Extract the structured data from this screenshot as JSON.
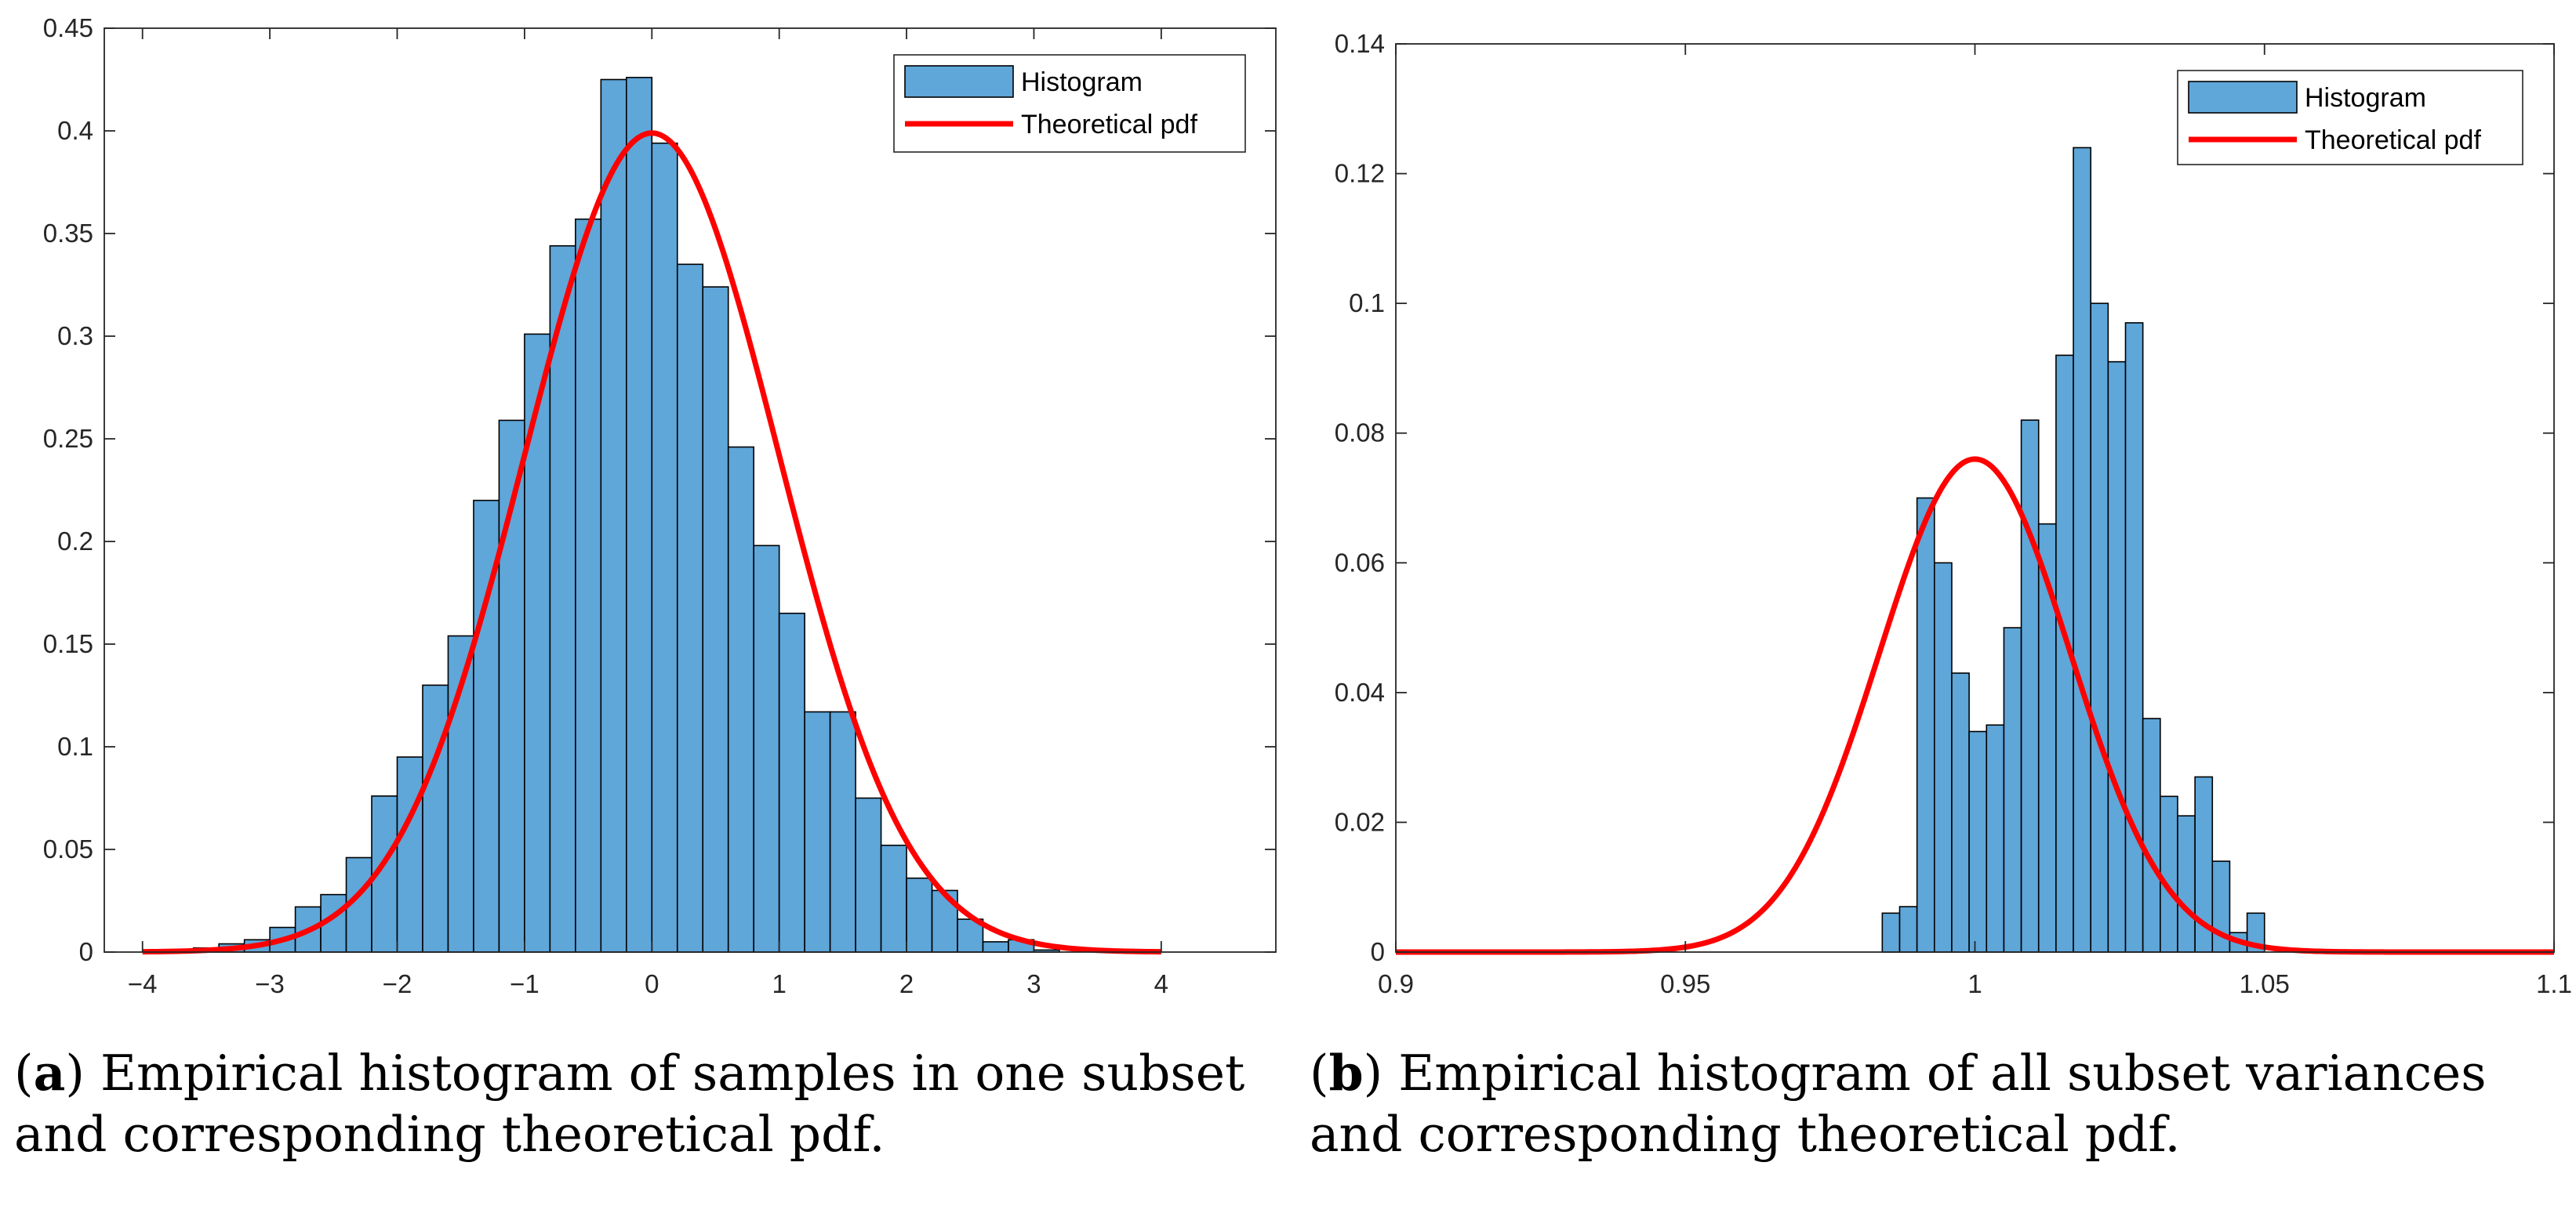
{
  "chart_data": [
    {
      "type": "bar",
      "title": "",
      "xlabel": "",
      "ylabel": "",
      "xlim": [
        -4.3,
        4.9
      ],
      "ylim": [
        0,
        0.45
      ],
      "xticks": [
        -4,
        -3,
        -2,
        -1,
        0,
        1,
        2,
        3,
        4
      ],
      "xtick_labels": [
        "−4",
        "−3",
        "−2",
        "−1",
        "0",
        "1",
        "2",
        "3",
        "4"
      ],
      "yticks": [
        0,
        0.05,
        0.1,
        0.15,
        0.2,
        0.25,
        0.3,
        0.35,
        0.4,
        0.45
      ],
      "ytick_labels": [
        "0",
        "0.05",
        "0.1",
        "0.15",
        "0.2",
        "0.25",
        "0.3",
        "0.35",
        "0.4",
        "0.45"
      ],
      "legend": {
        "position": "top-right",
        "entries": [
          "Histogram",
          "Theoretical pdf"
        ]
      },
      "series": [
        {
          "name": "Histogram",
          "type": "histogram",
          "color": "#5fa6d9",
          "edges": [
            -3.6,
            -3.4,
            -3.2,
            -3.0,
            -2.8,
            -2.6,
            -2.4,
            -2.2,
            -2.0,
            -1.8,
            -1.6,
            -1.4,
            -1.2,
            -1.0,
            -0.8,
            -0.6,
            -0.4,
            -0.2,
            0.0,
            0.2,
            0.4,
            0.6,
            0.8,
            1.0,
            1.2,
            1.4,
            1.6,
            1.8,
            2.0,
            2.2,
            2.4,
            2.6,
            2.8,
            3.0,
            3.2
          ],
          "values": [
            0.002,
            0.004,
            0.006,
            0.012,
            0.022,
            0.028,
            0.046,
            0.076,
            0.095,
            0.13,
            0.154,
            0.22,
            0.259,
            0.301,
            0.344,
            0.357,
            0.425,
            0.426,
            0.394,
            0.335,
            0.324,
            0.246,
            0.198,
            0.165,
            0.117,
            0.117,
            0.075,
            0.052,
            0.036,
            0.03,
            0.016,
            0.005,
            0.006,
            0.001
          ]
        },
        {
          "name": "Theoretical pdf",
          "type": "normal-pdf",
          "color": "#ff0000",
          "mean": 0,
          "std": 1,
          "x_range": [
            -4,
            4
          ]
        }
      ]
    },
    {
      "type": "bar",
      "title": "",
      "xlabel": "",
      "ylabel": "",
      "xlim": [
        0.9,
        1.1
      ],
      "ylim": [
        0,
        0.14
      ],
      "xticks": [
        0.9,
        0.95,
        1,
        1.05,
        1.1
      ],
      "xtick_labels": [
        "0.9",
        "0.95",
        "1",
        "1.05",
        "1.1"
      ],
      "yticks": [
        0,
        0.02,
        0.04,
        0.06,
        0.08,
        0.1,
        0.12,
        0.14
      ],
      "ytick_labels": [
        "0",
        "0.02",
        "0.04",
        "0.06",
        "0.08",
        "0.1",
        "0.12",
        "0.14"
      ],
      "legend": {
        "position": "top-right",
        "entries": [
          "Histogram",
          "Theoretical pdf"
        ]
      },
      "series": [
        {
          "name": "Histogram",
          "type": "histogram",
          "color": "#5fa6d9",
          "edges": [
            0.984,
            0.987,
            0.99,
            0.993,
            0.996,
            0.999,
            1.002,
            1.005,
            1.008,
            1.011,
            1.014,
            1.017,
            1.02,
            1.023,
            1.026,
            1.029,
            1.032,
            1.035,
            1.038,
            1.041,
            1.044,
            1.047,
            1.05
          ],
          "values": [
            0.006,
            0.007,
            0.07,
            0.06,
            0.043,
            0.034,
            0.035,
            0.05,
            0.082,
            0.066,
            0.092,
            0.124,
            0.1,
            0.091,
            0.097,
            0.036,
            0.024,
            0.021,
            0.027,
            0.014,
            0.003,
            0.006
          ]
        },
        {
          "name": "Theoretical pdf",
          "type": "normal-pdf",
          "color": "#ff0000",
          "mean": 1.0,
          "std": 0.0165,
          "peak": 0.076,
          "x_range": [
            0.9,
            1.1
          ]
        }
      ]
    }
  ],
  "captions": [
    {
      "label": "a",
      "text": "Empirical histogram of samples in one subset and corresponding theoretical pdf."
    },
    {
      "label": "b",
      "text": "Empirical histogram of all subset variances and corresponding theoretical pdf."
    }
  ],
  "colors": {
    "bar": "#5fa6d9",
    "bar_edge": "#000000",
    "curve": "#ff0000",
    "axis": "#262626"
  }
}
